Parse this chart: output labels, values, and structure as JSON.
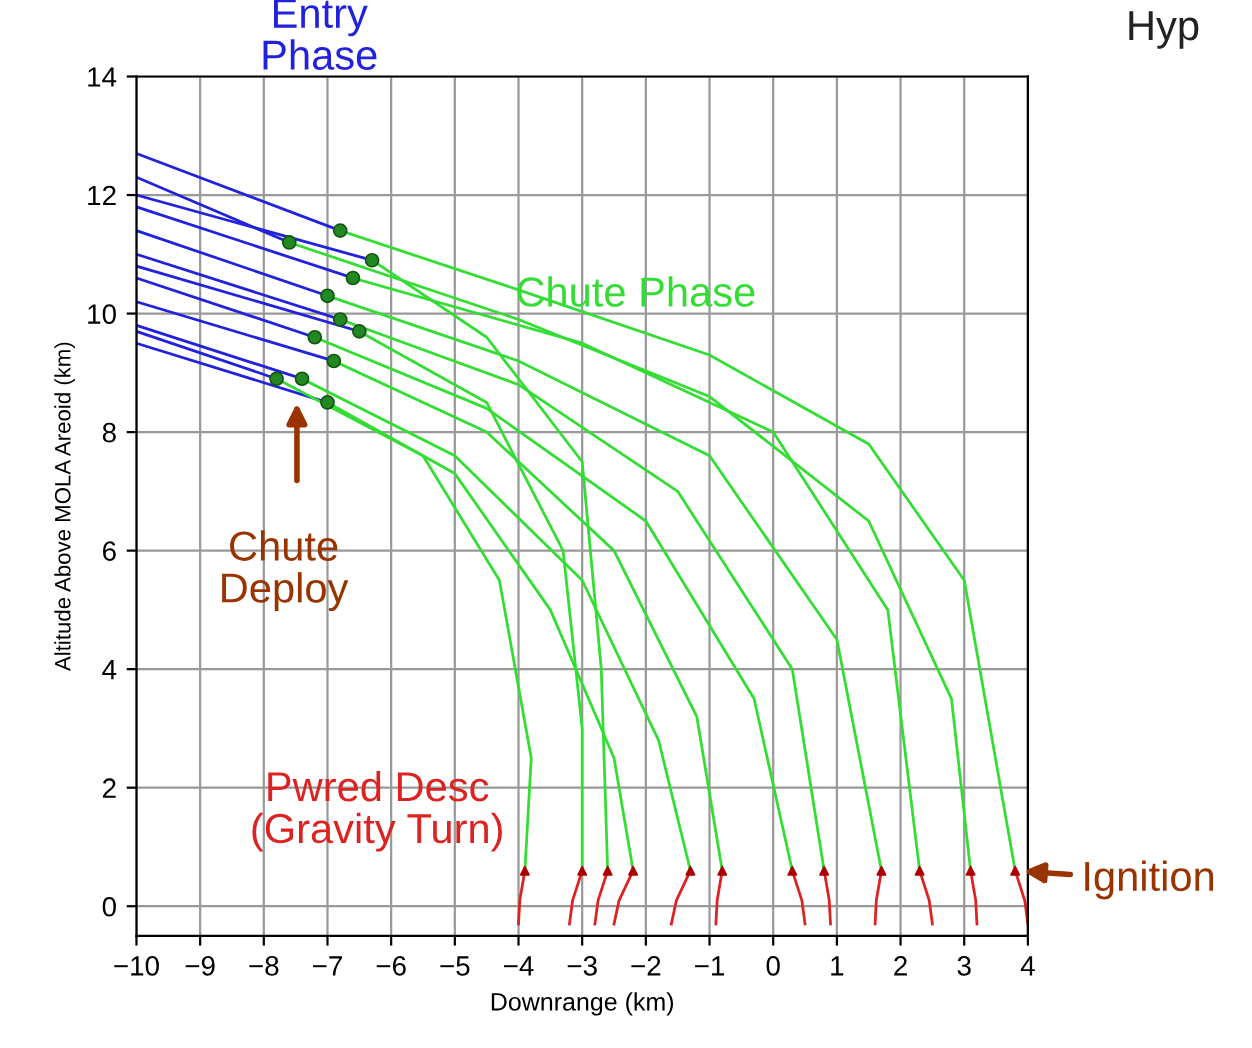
{
  "chart_data": {
    "type": "line",
    "xlabel": "Downrange (km)",
    "ylabel": "Altitude Above MOLA Areoid (km)",
    "xlim": [
      -10,
      4
    ],
    "ylim": [
      -0.5,
      14
    ],
    "xticks": [
      -10,
      -9,
      -8,
      -7,
      -6,
      -5,
      -4,
      -3,
      -2,
      -1,
      0,
      1,
      2,
      3,
      4
    ],
    "yticks": [
      0,
      2,
      4,
      6,
      8,
      10,
      12,
      14
    ],
    "grid": true,
    "legend": false,
    "marker": "none",
    "line_style": "solid",
    "series": [
      {
        "color": "#2222dd",
        "x": [
          -10,
          -6.8
        ],
        "values": [
          12.7,
          11.4
        ]
      },
      {
        "color": "#2222dd",
        "x": [
          -10,
          -7.6
        ],
        "values": [
          12.3,
          11.2
        ]
      },
      {
        "color": "#2222dd",
        "x": [
          -10,
          -6.6
        ],
        "values": [
          11.8,
          10.6
        ]
      },
      {
        "color": "#2222dd",
        "x": [
          -10,
          -7.0
        ],
        "values": [
          11.4,
          10.3
        ]
      },
      {
        "color": "#2222dd",
        "x": [
          -10,
          -6.8
        ],
        "values": [
          11.0,
          9.9
        ]
      },
      {
        "color": "#2222dd",
        "x": [
          -10,
          -7.2
        ],
        "values": [
          10.6,
          9.6
        ]
      },
      {
        "color": "#2222dd",
        "x": [
          -10,
          -6.9
        ],
        "values": [
          10.2,
          9.2
        ]
      },
      {
        "color": "#2222dd",
        "x": [
          -10,
          -7.4
        ],
        "values": [
          9.8,
          8.9
        ]
      },
      {
        "color": "#2222dd",
        "x": [
          -10,
          -7.0
        ],
        "values": [
          9.5,
          8.5
        ]
      },
      {
        "color": "#2222dd",
        "x": [
          -10,
          -6.3
        ],
        "values": [
          12.0,
          10.9
        ]
      },
      {
        "color": "#2222dd",
        "x": [
          -10,
          -6.5
        ],
        "values": [
          10.8,
          9.7
        ]
      },
      {
        "color": "#2222dd",
        "x": [
          -10,
          -7.8
        ],
        "values": [
          9.7,
          8.9
        ]
      },
      {
        "color": "#33dd33",
        "x": [
          -6.8,
          -4,
          -1,
          1.5,
          3,
          3.8
        ],
        "values": [
          11.4,
          10.4,
          9.3,
          7.8,
          5.5,
          0.6
        ]
      },
      {
        "color": "#33dd33",
        "x": [
          -7.6,
          -4,
          -1,
          1.5,
          2.8,
          3.1
        ],
        "values": [
          11.2,
          9.9,
          8.6,
          6.5,
          3.5,
          0.6
        ]
      },
      {
        "color": "#33dd33",
        "x": [
          -6.6,
          -3,
          0,
          1.8,
          2.3
        ],
        "values": [
          10.6,
          9.5,
          8.0,
          5.0,
          0.6
        ]
      },
      {
        "color": "#33dd33",
        "x": [
          -7.0,
          -4,
          -1,
          1,
          1.7
        ],
        "values": [
          10.3,
          9.2,
          7.6,
          4.5,
          0.6
        ]
      },
      {
        "color": "#33dd33",
        "x": [
          -6.8,
          -4,
          -1.5,
          0.3,
          0.8
        ],
        "values": [
          9.9,
          8.8,
          7.0,
          4.0,
          0.6
        ]
      },
      {
        "color": "#33dd33",
        "x": [
          -7.2,
          -4.5,
          -2,
          -0.3,
          0.3
        ],
        "values": [
          9.6,
          8.4,
          6.5,
          3.5,
          0.6
        ]
      },
      {
        "color": "#33dd33",
        "x": [
          -6.9,
          -4.5,
          -2.5,
          -1.2,
          -0.8
        ],
        "values": [
          9.2,
          8.0,
          6.0,
          3.2,
          0.6
        ]
      },
      {
        "color": "#33dd33",
        "x": [
          -7.4,
          -5,
          -3,
          -1.8,
          -1.3
        ],
        "values": [
          8.9,
          7.6,
          5.5,
          2.8,
          0.6
        ]
      },
      {
        "color": "#33dd33",
        "x": [
          -7.0,
          -5,
          -3.5,
          -2.5,
          -2.2
        ],
        "values": [
          8.5,
          7.3,
          5.0,
          2.5,
          0.6
        ]
      },
      {
        "color": "#33dd33",
        "x": [
          -6.3,
          -4.5,
          -3,
          -2.7,
          -2.6
        ],
        "values": [
          10.9,
          9.6,
          7.5,
          4.0,
          0.6
        ]
      },
      {
        "color": "#33dd33",
        "x": [
          -6.5,
          -4.5,
          -3.3,
          -3.0,
          -3.0
        ],
        "values": [
          9.7,
          8.5,
          6.0,
          3.0,
          0.6
        ]
      },
      {
        "color": "#33dd33",
        "x": [
          -7.8,
          -5.5,
          -4.3,
          -3.8,
          -3.9
        ],
        "values": [
          8.9,
          7.6,
          5.5,
          2.5,
          0.6
        ]
      },
      {
        "color": "#dd2222",
        "x": [
          3.8,
          3.95,
          4.0
        ],
        "values": [
          0.6,
          0.1,
          -0.3
        ]
      },
      {
        "color": "#dd2222",
        "x": [
          3.1,
          3.18,
          3.2
        ],
        "values": [
          0.6,
          0.1,
          -0.3
        ]
      },
      {
        "color": "#dd2222",
        "x": [
          2.3,
          2.45,
          2.5
        ],
        "values": [
          0.6,
          0.1,
          -0.3
        ]
      },
      {
        "color": "#dd2222",
        "x": [
          1.7,
          1.62,
          1.6
        ],
        "values": [
          0.6,
          0.1,
          -0.3
        ]
      },
      {
        "color": "#dd2222",
        "x": [
          0.8,
          0.88,
          0.9
        ],
        "values": [
          0.6,
          0.1,
          -0.3
        ]
      },
      {
        "color": "#dd2222",
        "x": [
          0.3,
          0.45,
          0.5
        ],
        "values": [
          0.6,
          0.1,
          -0.3
        ]
      },
      {
        "color": "#dd2222",
        "x": [
          -0.8,
          -0.88,
          -0.9
        ],
        "values": [
          0.6,
          0.1,
          -0.3
        ]
      },
      {
        "color": "#dd2222",
        "x": [
          -1.3,
          -1.52,
          -1.6
        ],
        "values": [
          0.6,
          0.1,
          -0.3
        ]
      },
      {
        "color": "#dd2222",
        "x": [
          -2.2,
          -2.42,
          -2.5
        ],
        "values": [
          0.6,
          0.1,
          -0.3
        ]
      },
      {
        "color": "#dd2222",
        "x": [
          -2.6,
          -2.75,
          -2.8
        ],
        "values": [
          0.6,
          0.1,
          -0.3
        ]
      },
      {
        "color": "#dd2222",
        "x": [
          -3.0,
          -3.15,
          -3.2
        ],
        "values": [
          0.6,
          0.1,
          -0.3
        ]
      },
      {
        "color": "#dd2222",
        "x": [
          -3.9,
          -3.98,
          -4.0
        ],
        "values": [
          0.6,
          0.1,
          -0.3
        ]
      },
      {
        "type": "scatter",
        "color": "#228822",
        "marker": "circle",
        "x": [
          -6.8,
          -7.6,
          -6.6,
          -7.0,
          -6.8,
          -7.2,
          -6.9,
          -7.4,
          -7.0,
          -6.3,
          -6.5,
          -7.8
        ],
        "values": [
          11.4,
          11.2,
          10.6,
          10.3,
          9.9,
          9.6,
          9.2,
          8.9,
          8.5,
          10.9,
          9.7,
          8.9
        ]
      },
      {
        "type": "scatter",
        "color": "#aa0000",
        "marker": "triangle",
        "x": [
          3.8,
          3.1,
          2.3,
          1.7,
          0.8,
          0.3,
          -0.8,
          -1.3,
          -2.2,
          -2.6,
          -3.0,
          -3.9
        ],
        "values": [
          0.6,
          0.6,
          0.6,
          0.6,
          0.6,
          0.6,
          0.6,
          0.6,
          0.6,
          0.6,
          0.6,
          0.6
        ]
      }
    ],
    "annotations": [
      "Entry\nPhase",
      "Chute Phase",
      "Pwred Desc\n(Gravity Turn)",
      "Chute\nDeploy",
      {
        "text": "Ignition",
        "x": 3.8,
        "y": 0.6
      },
      "Hyp"
    ]
  }
}
